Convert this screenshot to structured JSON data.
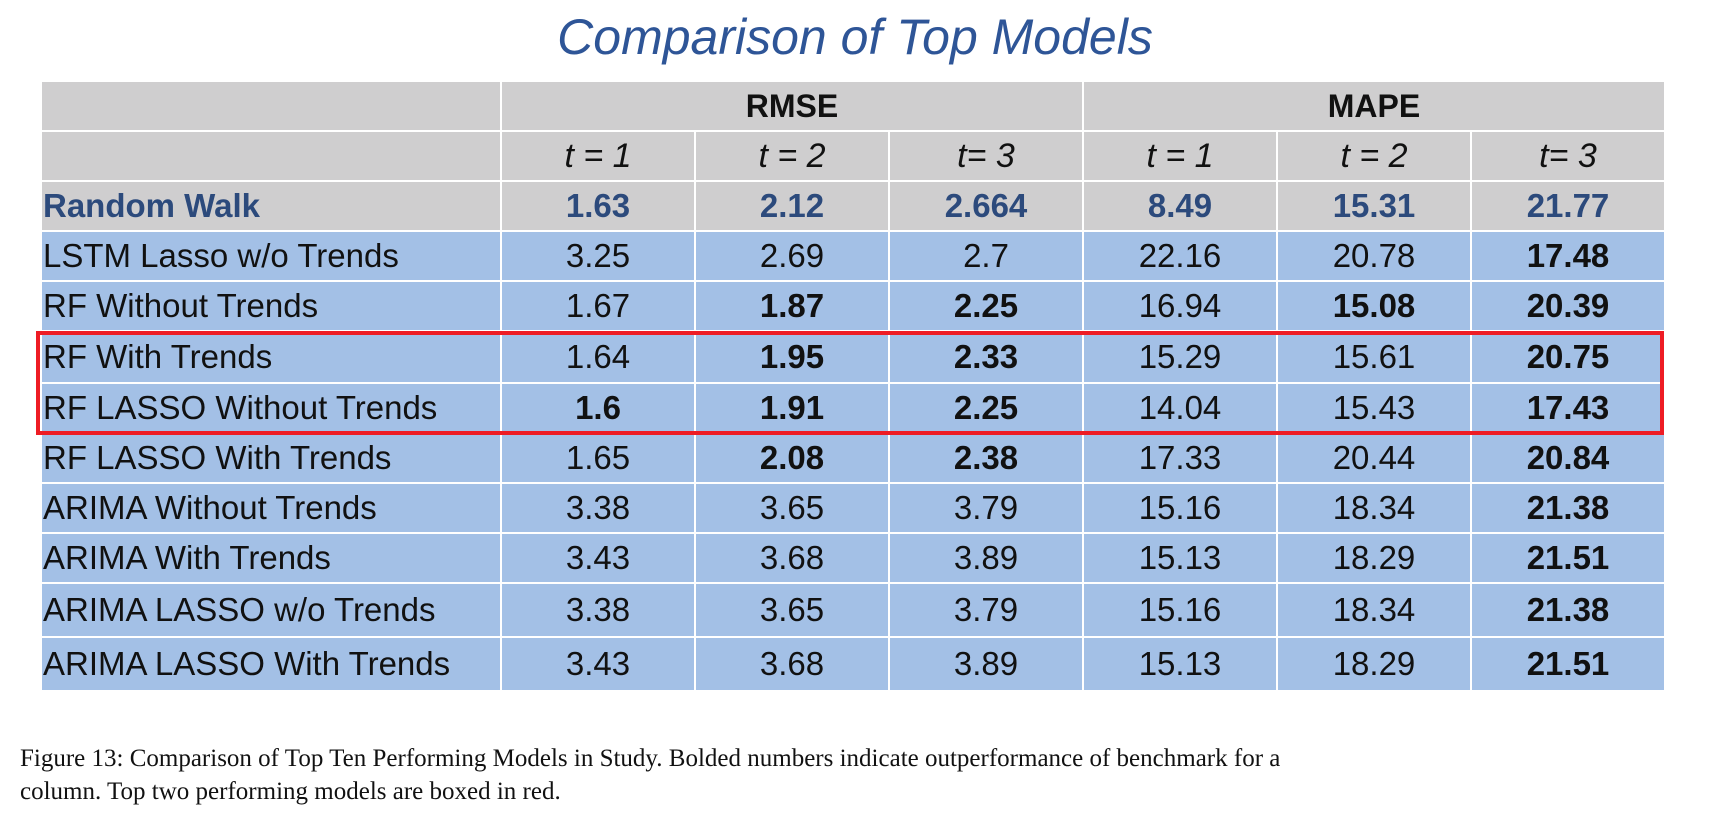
{
  "title": "Comparison of Top Models",
  "groups": [
    "RMSE",
    "MAPE"
  ],
  "subheaders": [
    "t = 1",
    "t = 2",
    "t= 3",
    "t = 1",
    "t = 2",
    "t= 3"
  ],
  "rows": [
    {
      "name": "Random Walk",
      "values": [
        "1.63",
        "2.12",
        "2.664",
        "8.49",
        "15.31",
        "21.77"
      ],
      "bold": [
        true,
        true,
        true,
        true,
        true,
        true
      ]
    },
    {
      "name": "LSTM Lasso w/o Trends",
      "values": [
        "3.25",
        "2.69",
        "2.7",
        "22.16",
        "20.78",
        "17.48"
      ],
      "bold": [
        false,
        false,
        false,
        false,
        false,
        true
      ]
    },
    {
      "name": "RF Without Trends",
      "values": [
        "1.67",
        "1.87",
        "2.25",
        "16.94",
        "15.08",
        "20.39"
      ],
      "bold": [
        false,
        true,
        true,
        false,
        true,
        true
      ]
    },
    {
      "name": "RF With Trends",
      "values": [
        "1.64",
        "1.95",
        "2.33",
        "15.29",
        "15.61",
        "20.75"
      ],
      "bold": [
        false,
        true,
        true,
        false,
        false,
        true
      ]
    },
    {
      "name": "RF LASSO Without Trends",
      "values": [
        "1.6",
        "1.91",
        "2.25",
        "14.04",
        "15.43",
        "17.43"
      ],
      "bold": [
        true,
        true,
        true,
        false,
        false,
        true
      ]
    },
    {
      "name": "RF LASSO With Trends",
      "values": [
        "1.65",
        "2.08",
        "2.38",
        "17.33",
        "20.44",
        "20.84"
      ],
      "bold": [
        false,
        true,
        true,
        false,
        false,
        true
      ]
    },
    {
      "name": "ARIMA Without Trends",
      "values": [
        "3.38",
        "3.65",
        "3.79",
        "15.16",
        "18.34",
        "21.38"
      ],
      "bold": [
        false,
        false,
        false,
        false,
        false,
        true
      ]
    },
    {
      "name": "ARIMA With Trends",
      "values": [
        "3.43",
        "3.68",
        "3.89",
        "15.13",
        "18.29",
        "21.51"
      ],
      "bold": [
        false,
        false,
        false,
        false,
        false,
        true
      ]
    },
    {
      "name": "ARIMA LASSO w/o Trends",
      "values": [
        "3.38",
        "3.65",
        "3.79",
        "15.16",
        "18.34",
        "21.38"
      ],
      "bold": [
        false,
        false,
        false,
        false,
        false,
        true
      ]
    },
    {
      "name": "ARIMA LASSO With Trends",
      "values": [
        "3.43",
        "3.68",
        "3.89",
        "15.13",
        "18.29",
        "21.51"
      ],
      "bold": [
        false,
        false,
        false,
        false,
        false,
        true
      ]
    }
  ],
  "highlight": {
    "color": "#ee1c24",
    "rows": [
      "RF With Trends",
      "RF LASSO Without Trends"
    ]
  },
  "colors": {
    "title": "#2e5597",
    "header_bg": "#cfcecf",
    "row_bg": "#a3c0e6",
    "benchmark_text": "#2c4a7c"
  },
  "caption": {
    "line1": "Figure 13: Comparison of Top Ten Performing Models in Study. Bolded numbers indicate outperformance of benchmark for a",
    "line2": "column. Top two performing models are boxed in red."
  }
}
